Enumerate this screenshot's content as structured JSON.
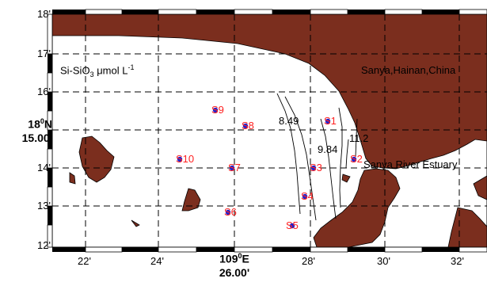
{
  "panel": {
    "parameter_label_main": "Si-SiO",
    "parameter_label_sub": "3",
    "parameter_label_unit": " μmol L",
    "parameter_label_sup": "-1",
    "region_label": "Sanya,Hainan,China",
    "estuary_label": "Sanya River Estuary"
  },
  "axes": {
    "lat_ticks": [
      "18'",
      "17'",
      "16'",
      "14'",
      "13'",
      "12'"
    ],
    "lat_center_main": "18",
    "lat_center_deg": "0",
    "lat_center_n": "N",
    "lat_center_sub": "15.00'",
    "lon_ticks": [
      "22'",
      "24'",
      "28'",
      "30'",
      "32'"
    ],
    "lon_center_main": "109",
    "lon_center_deg": "0",
    "lon_center_e": "E",
    "lon_center_sub": "26.00'"
  },
  "stations": [
    "S1",
    "S2",
    "S3",
    "S4",
    "S5",
    "S6",
    "S7",
    "S8",
    "S9",
    "S10"
  ],
  "contours": [
    "8.49",
    "9.84",
    "11.2"
  ],
  "colors": {
    "land": "#7b2e1e",
    "station_dot": "#2222cc",
    "station_label": "#ff2020",
    "grid": "#000000"
  }
}
